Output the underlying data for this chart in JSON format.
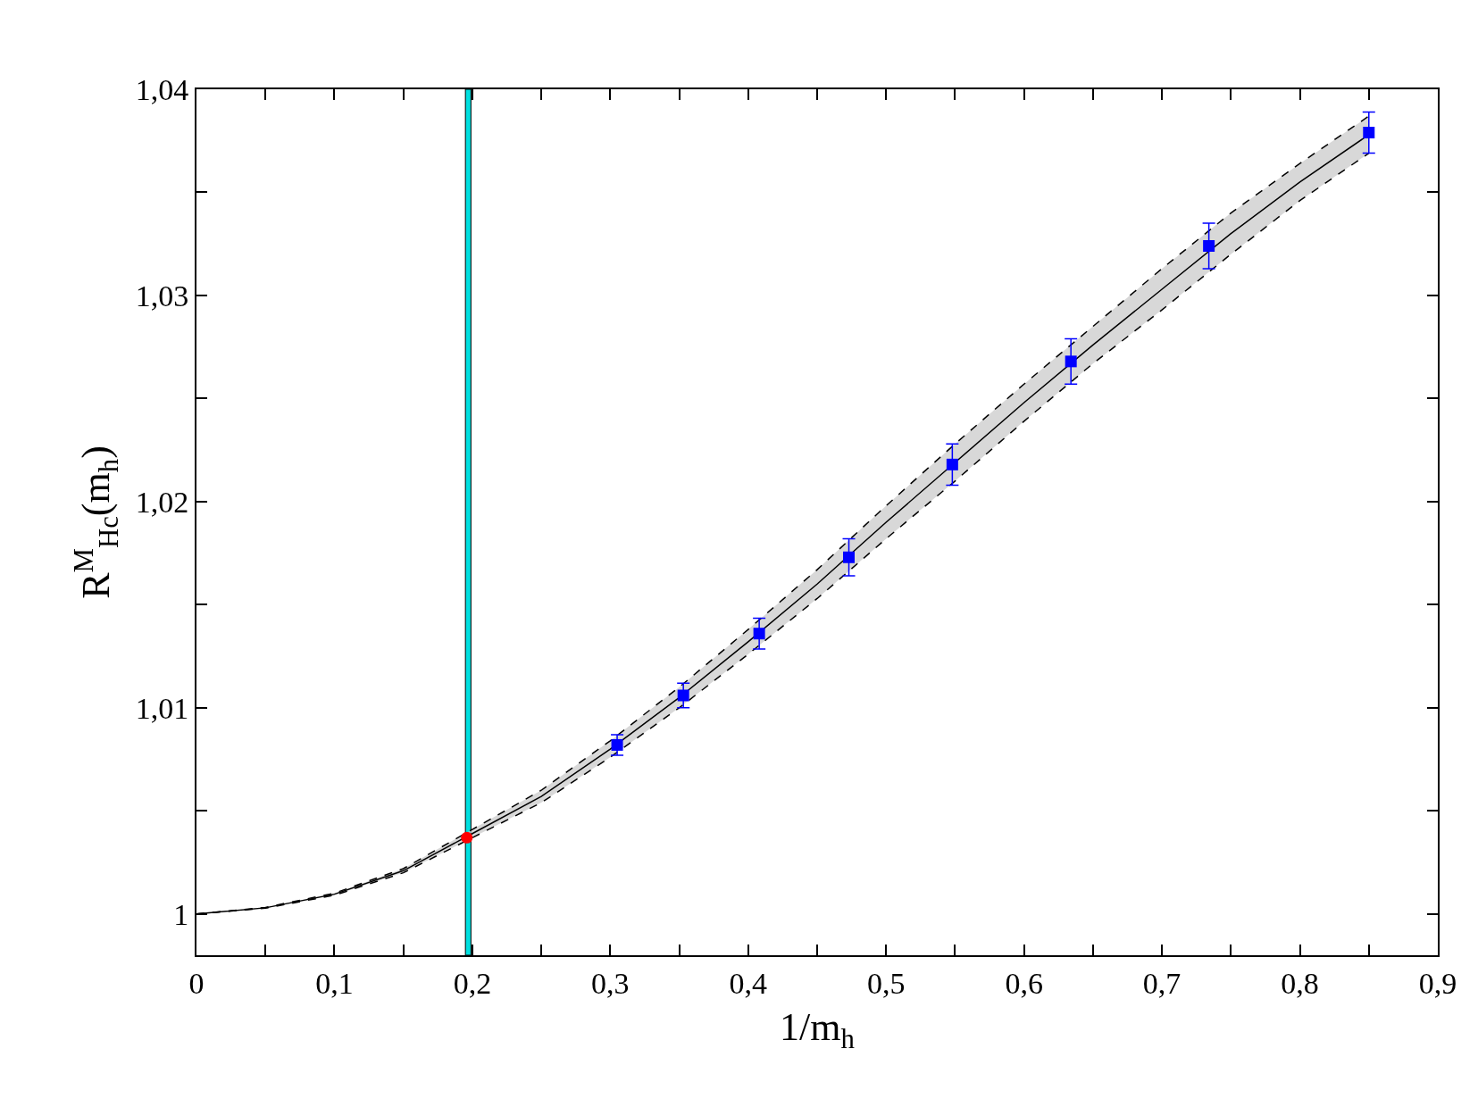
{
  "chart_data": {
    "type": "scatter",
    "xlabel": "1/m$_{h}$",
    "ylabel": "R$^{M}$$_{H}$$_{c}$(m$_{h}$)",
    "series": [
      {
        "type": "line",
        "color": "#000000",
        "marker": "none",
        "line_style": "solid",
        "x": [
          0,
          0.05,
          0.1,
          0.15,
          0.2,
          0.25,
          0.3,
          0.35,
          0.4,
          0.45,
          0.5,
          0.55,
          0.6,
          0.65,
          0.7,
          0.75,
          0.8,
          0.85
        ],
        "values": [
          1.0,
          1.0003,
          1.00096,
          1.0021,
          1.0039,
          1.0057,
          1.008,
          1.0105,
          1.0132,
          1.016,
          1.019,
          1.0219,
          1.0248,
          1.0276,
          1.0303,
          1.033,
          1.0355,
          1.0378
        ],
        "lower": [
          1.0,
          1.00028,
          1.00091,
          1.002,
          1.0037,
          1.0054,
          1.0076,
          1.01,
          1.0126,
          1.0153,
          1.0182,
          1.021,
          1.0239,
          1.0267,
          1.0293,
          1.032,
          1.0346,
          1.0369
        ],
        "upper": [
          1.0,
          1.00032,
          1.00101,
          1.0022,
          1.0041,
          1.006,
          1.0084,
          1.011,
          1.0138,
          1.0167,
          1.0198,
          1.0228,
          1.0257,
          1.0285,
          1.0313,
          1.034,
          1.0364,
          1.0387
        ]
      },
      {
        "type": "line",
        "color": "#000000",
        "marker": "none",
        "line_style": "dashed",
        "x": [
          0,
          0.05,
          0.1,
          0.15,
          0.2,
          0.25,
          0.3,
          0.35,
          0.4,
          0.45,
          0.5,
          0.55,
          0.6,
          0.65,
          0.7,
          0.75,
          0.8,
          0.85
        ],
        "values": [
          1.0,
          1.00028,
          1.00091,
          1.002,
          1.0037,
          1.0054,
          1.0076,
          1.01,
          1.0126,
          1.0153,
          1.0182,
          1.021,
          1.0239,
          1.0267,
          1.0293,
          1.032,
          1.0346,
          1.0369
        ]
      },
      {
        "type": "line",
        "color": "#000000",
        "marker": "none",
        "line_style": "dashed",
        "x": [
          0,
          0.05,
          0.1,
          0.15,
          0.2,
          0.25,
          0.3,
          0.35,
          0.4,
          0.45,
          0.5,
          0.55,
          0.6,
          0.65,
          0.7,
          0.75,
          0.8,
          0.85
        ],
        "values": [
          1.0,
          1.00032,
          1.00101,
          1.0022,
          1.0041,
          1.006,
          1.0084,
          1.011,
          1.0138,
          1.0167,
          1.0198,
          1.0228,
          1.0257,
          1.0285,
          1.0313,
          1.034,
          1.0364,
          1.0387
        ]
      },
      {
        "color": "#0000ff",
        "marker": "square",
        "x": [
          0.305,
          0.353,
          0.408,
          0.473,
          0.548,
          0.634,
          0.734,
          0.85
        ],
        "values": [
          1.0082,
          1.0106,
          1.0136,
          1.0173,
          1.0218,
          1.0268,
          1.0324,
          1.0379
        ],
        "errors": [
          0.0005,
          0.0006,
          0.00075,
          0.0009,
          0.001,
          0.0011,
          0.0011,
          0.001
        ]
      },
      {
        "color": "#ff0000",
        "marker": "circle",
        "x": [
          0.196
        ],
        "values": [
          1.0037
        ]
      }
    ],
    "bands": [
      {
        "axis": "x",
        "from": 0.195,
        "to": 0.199,
        "color": "#00e0e0"
      }
    ],
    "xlim": [
      0,
      0.9
    ],
    "xticks": [
      0,
      {
        "value": 0.05,
        "label": null
      },
      {
        "value": 0.1,
        "label": "0,1"
      },
      {
        "value": 0.15,
        "label": null
      },
      {
        "value": 0.2,
        "label": "0,2"
      },
      {
        "value": 0.25,
        "label": null
      },
      {
        "value": 0.3,
        "label": "0,3"
      },
      {
        "value": 0.35,
        "label": null
      },
      {
        "value": 0.4,
        "label": "0,4"
      },
      {
        "value": 0.45,
        "label": null
      },
      {
        "value": 0.5,
        "label": "0,5"
      },
      {
        "value": 0.55,
        "label": null
      },
      {
        "value": 0.6,
        "label": "0,6"
      },
      {
        "value": 0.65,
        "label": null
      },
      {
        "value": 0.7,
        "label": "0,7"
      },
      {
        "value": 0.75,
        "label": null
      },
      {
        "value": 0.8,
        "label": "0,8"
      },
      {
        "value": 0.85,
        "label": null
      },
      {
        "value": 0.9,
        "label": "0,9"
      }
    ],
    "ylim": [
      0.998,
      1.04
    ],
    "yticks": [
      1,
      {
        "value": 1.005,
        "label": null
      },
      {
        "value": 1.01,
        "label": "1,01"
      },
      {
        "value": 1.015,
        "label": null
      },
      {
        "value": 1.02,
        "label": "1,02"
      },
      {
        "value": 1.025,
        "label": null
      },
      {
        "value": 1.03,
        "label": "1,03"
      },
      {
        "value": 1.035,
        "label": null
      },
      {
        "value": 1.04,
        "label": "1,04"
      }
    ],
    "grid": false
  }
}
